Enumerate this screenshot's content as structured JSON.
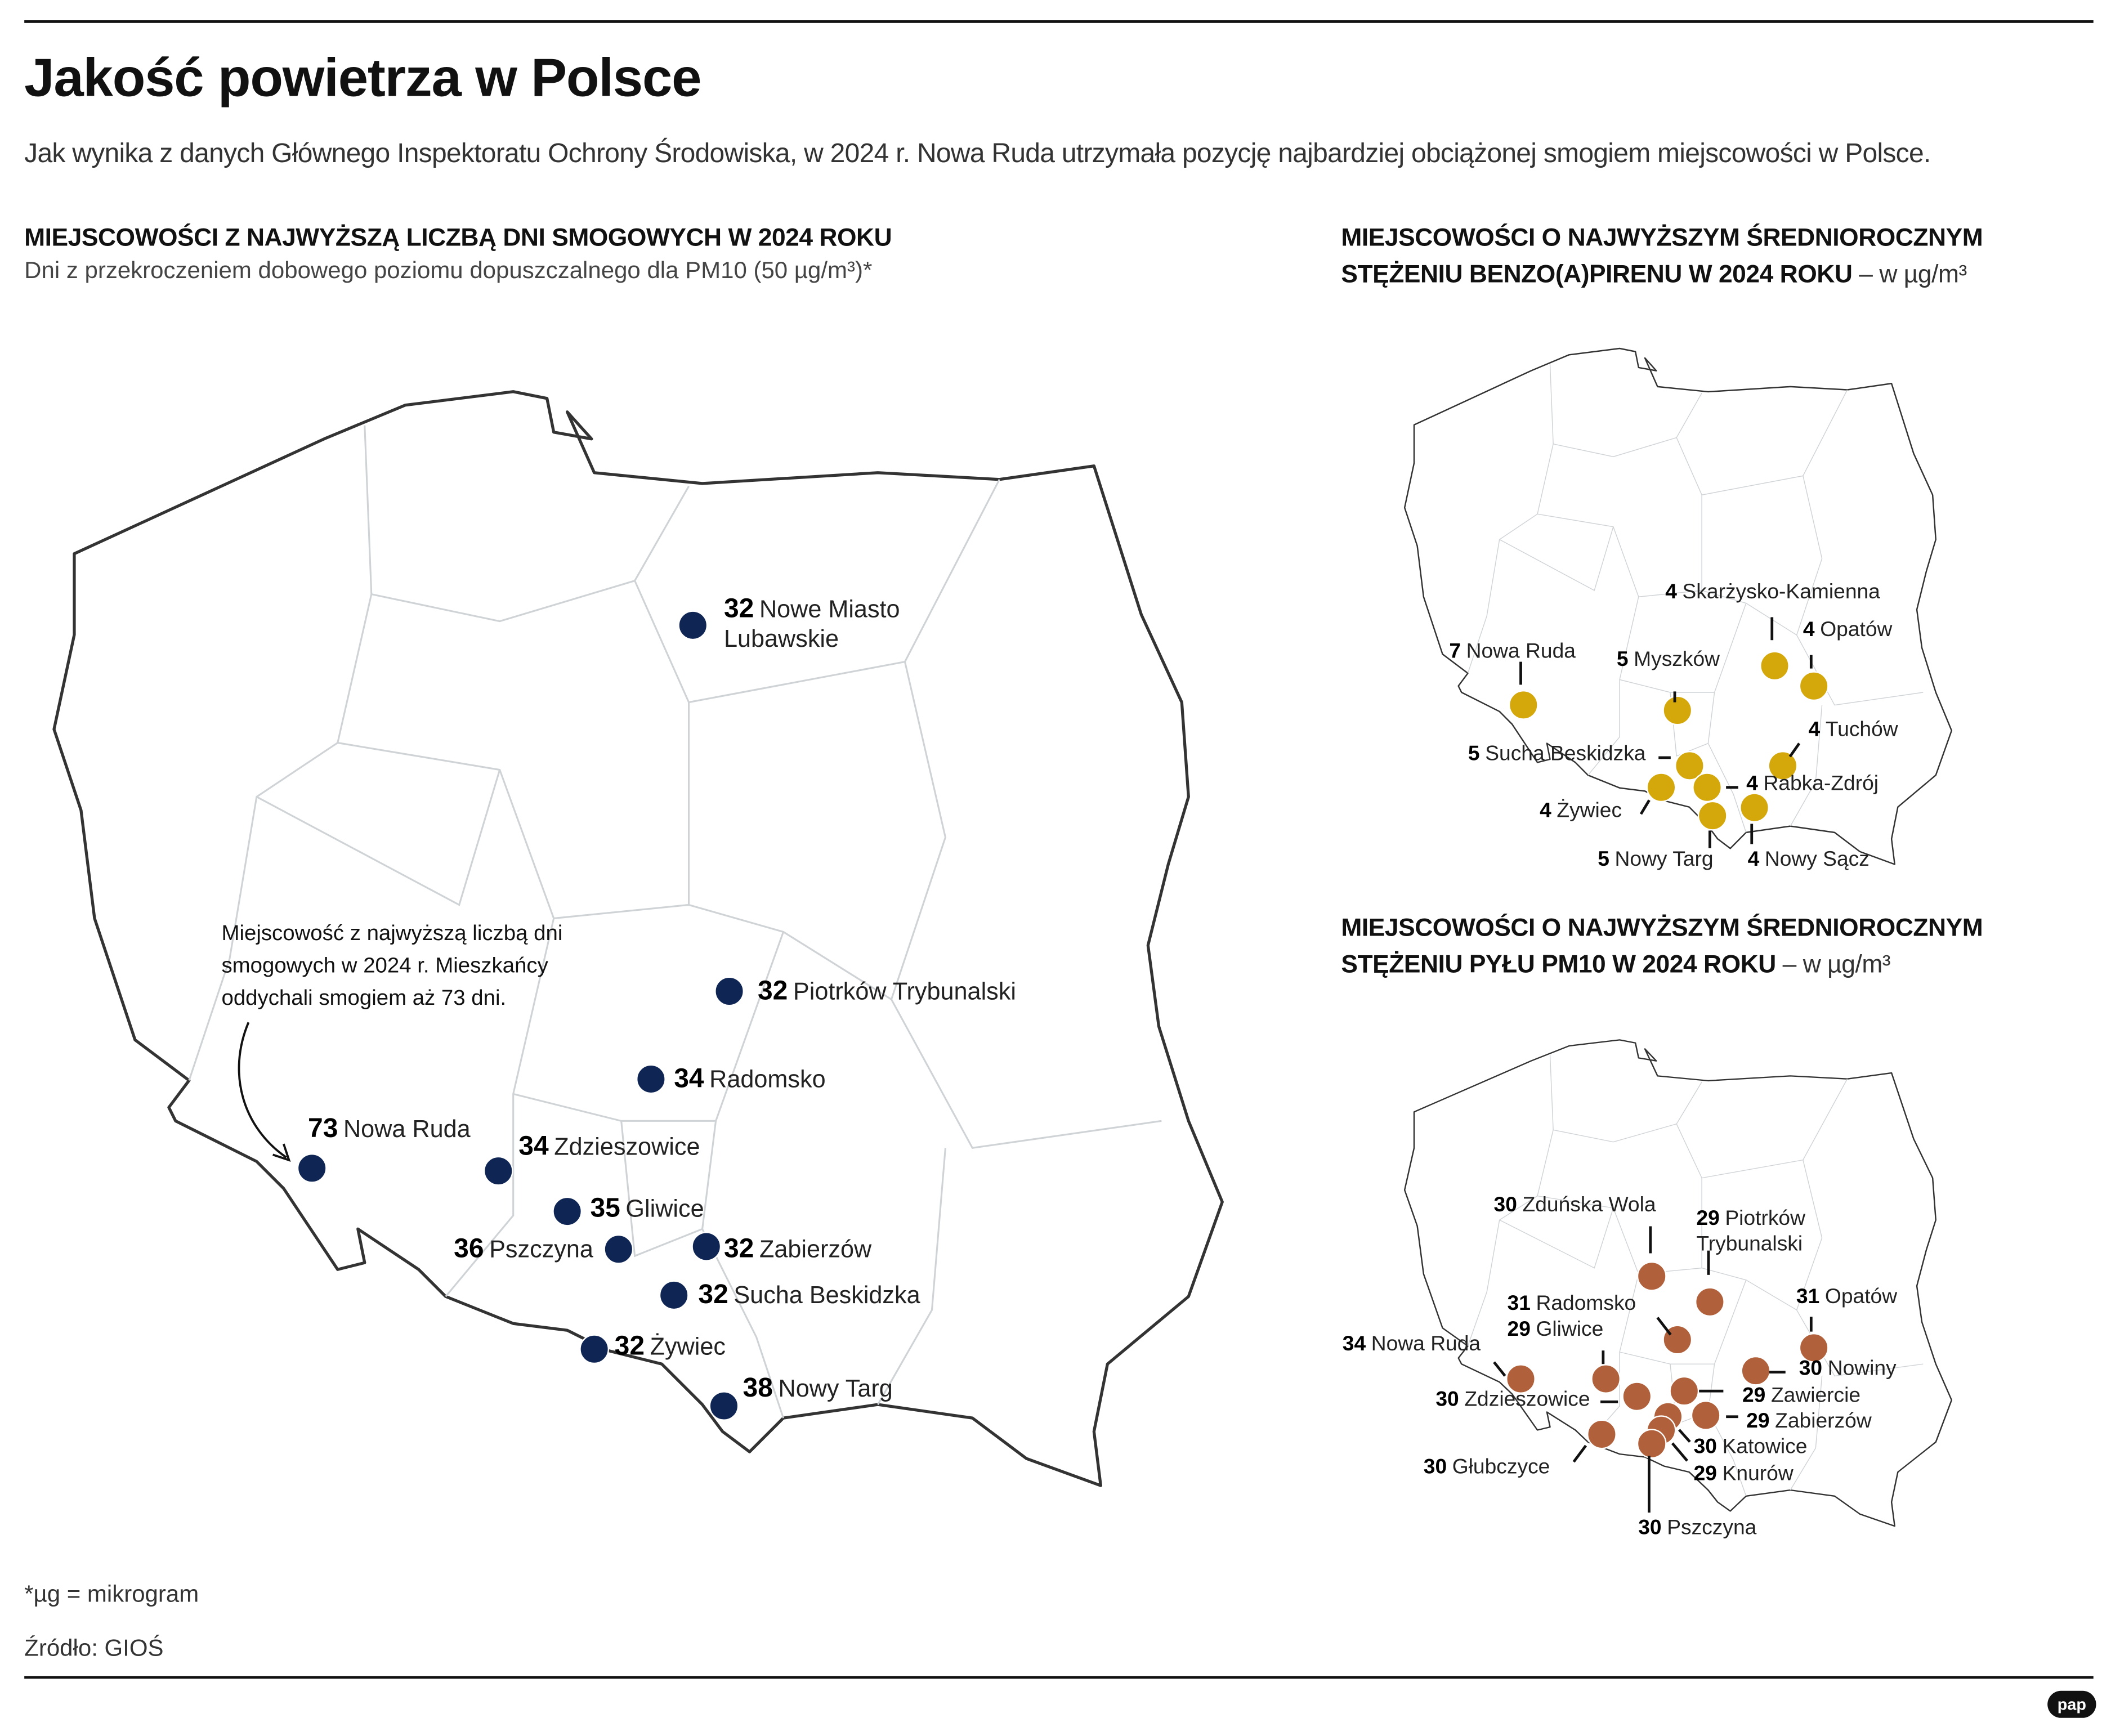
{
  "title": "Jakość powietrza w Polsce",
  "lead": "Jak wynika z danych Głównego Inspektoratu Ochrony Środowiska, w 2024 r. Nowa Ruda utrzymała pozycję najbardziej obciążonej smogiem miejscowości w Polsce.",
  "colors": {
    "smog_days": "#0f2553",
    "benzo": "#d4a70b",
    "pm10": "#b0603a"
  },
  "maps": [
    {
      "title": "MIEJSCOWOŚCI Z NAJWYŻSZĄ LICZBĄ DNI SMOGOWYCH W 2024 ROKU",
      "subtitle": "Dni z przekroczeniem dobowego poziomu dopuszczalnego dla PM10 (50 µg/m³)*",
      "points": [
        {
          "value": "32",
          "name": "Nowe Miasto Lubawskie"
        },
        {
          "value": "32",
          "name": "Piotrków Trybunalski"
        },
        {
          "value": "34",
          "name": "Radomsko"
        },
        {
          "value": "73",
          "name": "Nowa Ruda"
        },
        {
          "value": "34",
          "name": "Zdzieszowice"
        },
        {
          "value": "35",
          "name": "Gliwice"
        },
        {
          "value": "36",
          "name": "Pszczyna"
        },
        {
          "value": "32",
          "name": "Zabierzów"
        },
        {
          "value": "32",
          "name": "Sucha Beskidzka"
        },
        {
          "value": "32",
          "name": "Żywiec"
        },
        {
          "value": "38",
          "name": "Nowy Targ"
        }
      ],
      "callout": "Miejscowość z najwyższą liczbą dni smogowych w 2024 r. Mieszkańcy oddychali smogiem aż 73 dni."
    },
    {
      "title": "MIEJSCOWOŚCI O NAJWYŻSZYM ŚREDNIOROCZNYM STĘŻENIU BENZO(A)PIRENU W 2024 ROKU",
      "unit": "– w µg/m³",
      "points": [
        {
          "value": "4",
          "name": "Skarżysko-Kamienna"
        },
        {
          "value": "4",
          "name": "Opatów"
        },
        {
          "value": "7",
          "name": "Nowa Ruda"
        },
        {
          "value": "5",
          "name": "Myszków"
        },
        {
          "value": "4",
          "name": "Tuchów"
        },
        {
          "value": "5",
          "name": "Sucha Beskidzka"
        },
        {
          "value": "4",
          "name": "Rabka-Zdrój"
        },
        {
          "value": "4",
          "name": "Żywiec"
        },
        {
          "value": "5",
          "name": "Nowy Targ"
        },
        {
          "value": "4",
          "name": "Nowy Sącz"
        }
      ]
    },
    {
      "title": "MIEJSCOWOŚCI O NAJWYŻSZYM ŚREDNIOROCZNYM STĘŻENIU PYŁU PM10 W 2024 ROKU",
      "unit": "– w µg/m³",
      "points": [
        {
          "value": "30",
          "name": "Zduńska Wola"
        },
        {
          "value": "29",
          "name": "Piotrków Trybunalski"
        },
        {
          "value": "31",
          "name": "Radomsko"
        },
        {
          "value": "29",
          "name": "Gliwice"
        },
        {
          "value": "31",
          "name": "Opatów"
        },
        {
          "value": "34",
          "name": "Nowa Ruda"
        },
        {
          "value": "30",
          "name": "Nowiny"
        },
        {
          "value": "30",
          "name": "Zdzieszowice"
        },
        {
          "value": "29",
          "name": "Zawiercie"
        },
        {
          "value": "29",
          "name": "Zabierzów"
        },
        {
          "value": "30",
          "name": "Katowice"
        },
        {
          "value": "29",
          "name": "Knurów"
        },
        {
          "value": "30",
          "name": "Głubczyce"
        },
        {
          "value": "30",
          "name": "Pszczyna"
        }
      ]
    }
  ],
  "footnote": "*µg = mikrogram",
  "source": "Źródło: GIOŚ",
  "logo": "pap"
}
